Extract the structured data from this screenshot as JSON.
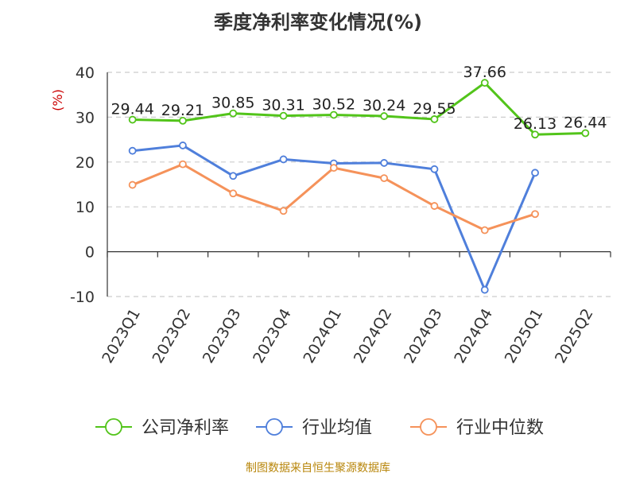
{
  "title": "季度净利率变化情况(%)",
  "source": "制图数据来自恒生聚源数据库",
  "chart_data": {
    "type": "line",
    "title": "季度净利率变化情况(%)",
    "ylabel": "(%)",
    "ylim": [
      -10,
      40
    ],
    "yticks": [
      -10,
      0,
      10,
      20,
      30,
      40
    ],
    "grid": true,
    "legend_position": "bottom",
    "categories": [
      "2023Q1",
      "2023Q2",
      "2023Q3",
      "2023Q4",
      "2024Q1",
      "2024Q2",
      "2024Q3",
      "2024Q4",
      "2025Q1",
      "2025Q2"
    ],
    "series": [
      {
        "name": "公司净利率",
        "color": "#52c41a",
        "values": [
          29.44,
          29.21,
          30.85,
          30.31,
          30.52,
          30.24,
          29.55,
          37.66,
          26.13,
          26.44
        ],
        "labels": [
          "29.44",
          "29.21",
          "30.85",
          "30.31",
          "30.52",
          "30.24",
          "29.55",
          "37.66",
          "26.13",
          "26.44"
        ]
      },
      {
        "name": "行业均值",
        "color": "#4f7fdb",
        "values": [
          22.5,
          23.7,
          16.9,
          20.6,
          19.7,
          19.8,
          18.4,
          -8.5,
          17.6,
          null
        ]
      },
      {
        "name": "行业中位数",
        "color": "#f5925a",
        "values": [
          14.9,
          19.5,
          13.0,
          9.1,
          18.7,
          16.4,
          10.2,
          4.8,
          8.4,
          null
        ]
      }
    ]
  }
}
